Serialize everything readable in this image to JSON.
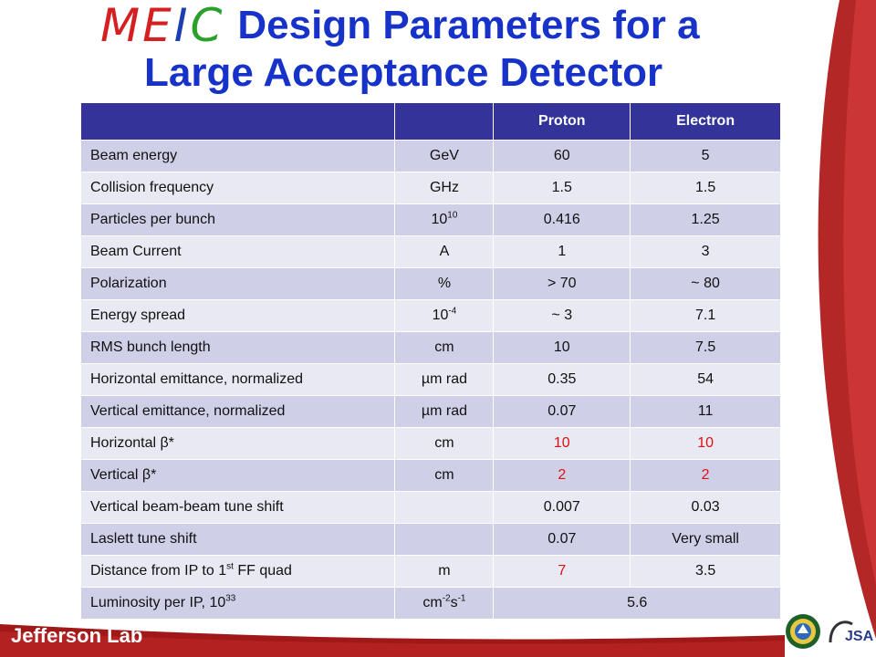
{
  "title": {
    "logo_letters": [
      "M",
      "E",
      "I",
      "C"
    ],
    "line1": "Design Parameters for a",
    "line2": "Large Acceptance Detector"
  },
  "table": {
    "headers": [
      "",
      "",
      "Proton",
      "Electron"
    ],
    "rows": [
      {
        "param": "Beam energy",
        "unit": "GeV",
        "proton": "60",
        "electron": "5"
      },
      {
        "param": "Collision frequency",
        "unit": "GHz",
        "proton": "1.5",
        "electron": "1.5"
      },
      {
        "param": "Particles per bunch",
        "unit_base": "10",
        "unit_sup": "10",
        "proton": "0.416",
        "electron": "1.25"
      },
      {
        "param": "Beam Current",
        "unit": "A",
        "proton": "1",
        "electron": "3"
      },
      {
        "param": "Polarization",
        "unit": "%",
        "proton": "> 70",
        "electron": "~ 80"
      },
      {
        "param": "Energy spread",
        "unit_base": "10",
        "unit_sup": "-4",
        "proton": "~ 3",
        "electron": "7.1"
      },
      {
        "param": "RMS bunch length",
        "unit": "cm",
        "proton": "10",
        "electron": "7.5"
      },
      {
        "param": "Horizontal emittance, normalized",
        "unit": "µm rad",
        "proton": "0.35",
        "electron": "54"
      },
      {
        "param": "Vertical emittance, normalized",
        "unit": "µm rad",
        "proton": "0.07",
        "electron": "11"
      },
      {
        "param": "Horizontal β*",
        "unit": "cm",
        "proton": "10",
        "electron": "10"
      },
      {
        "param": "Vertical β*",
        "unit": "cm",
        "proton": "2",
        "electron": "2"
      },
      {
        "param": "Vertical beam-beam tune shift",
        "unit": "",
        "proton": "0.007",
        "electron": "0.03"
      },
      {
        "param": "Laslett tune shift",
        "unit": "",
        "proton": "0.07",
        "electron": "Very small"
      },
      {
        "param_pre": "Distance from IP to 1",
        "param_sup": "st",
        "param_post": " FF quad",
        "unit": "m",
        "proton": "7",
        "electron": "3.5"
      },
      {
        "param_pre": "Luminosity per IP, 10",
        "param_sup": "33",
        "unit_a": "cm",
        "unit_a_sup": "-2",
        "unit_b": "s",
        "unit_b_sup": "-1",
        "value": "5.6"
      }
    ]
  },
  "footer": {
    "brand": "Jefferson Lab",
    "jsa_text": "JSA"
  },
  "colors": {
    "title_blue": "#1632c8",
    "header_bg": "#333399",
    "row_odd": "#cfd0e8",
    "row_even": "#e8e9f3",
    "highlight_red": "#e01010",
    "footer_red": "#a01818"
  }
}
